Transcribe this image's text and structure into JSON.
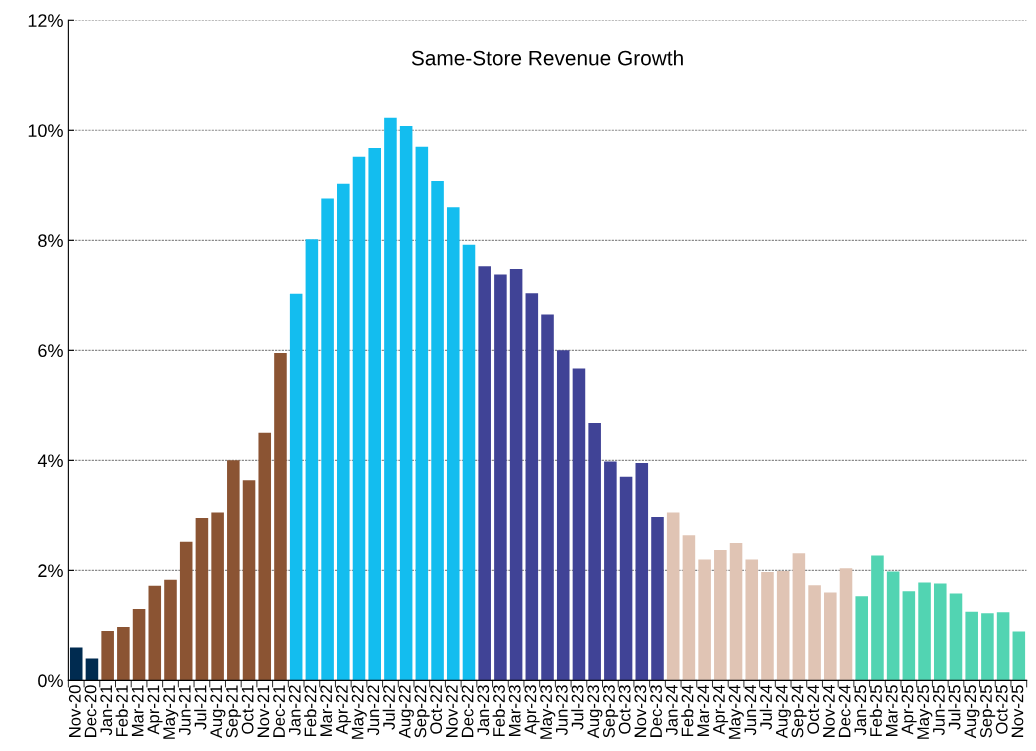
{
  "chart_data": {
    "type": "bar",
    "title": "Same-Store Revenue Growth",
    "categories": [
      "Nov-20",
      "Dec-20",
      "Jan-21",
      "Feb-21",
      "Mar-21",
      "Apr-21",
      "May-21",
      "Jun-21",
      "Jul-21",
      "Aug-21",
      "Sep-21",
      "Oct-21",
      "Nov-21",
      "Dec-21",
      "Jan-22",
      "Feb-22",
      "Mar-22",
      "Apr-22",
      "May-22",
      "Jun-22",
      "Jul-22",
      "Aug-22",
      "Sep-22",
      "Oct-22",
      "Nov-22",
      "Dec-22",
      "Jan-23",
      "Feb-23",
      "Mar-23",
      "Apr-23",
      "May-23",
      "Jun-23",
      "Jul-23",
      "Aug-23",
      "Sep-23",
      "Oct-23",
      "Nov-23",
      "Dec-23",
      "Jan-24",
      "Feb-24",
      "Mar-24",
      "Apr-24",
      "May-24",
      "Jun-24",
      "Jul-24",
      "Aug-24",
      "Sep-24",
      "Oct-24",
      "Nov-24",
      "Dec-24",
      "Jan-25",
      "Feb-25",
      "Mar-25",
      "Apr-25",
      "May-25",
      "Jun-25",
      "Jul-25",
      "Aug-25",
      "Sep-25",
      "Oct-25",
      "Nov-25"
    ],
    "values": [
      0.6,
      0.4,
      0.9,
      0.97,
      1.3,
      1.72,
      1.83,
      2.52,
      2.95,
      3.05,
      4.0,
      3.64,
      4.5,
      5.95,
      7.03,
      8.02,
      8.76,
      9.03,
      9.52,
      9.68,
      10.23,
      10.08,
      9.7,
      9.08,
      8.6,
      7.92,
      7.53,
      7.38,
      7.48,
      7.04,
      6.65,
      6.0,
      5.67,
      4.68,
      3.98,
      3.7,
      3.95,
      2.97,
      3.05,
      2.64,
      2.2,
      2.37,
      2.5,
      2.2,
      1.97,
      1.99,
      2.31,
      1.73,
      1.6,
      2.04,
      1.53,
      2.27,
      1.98,
      1.62,
      1.78,
      1.76,
      1.58,
      1.25,
      1.22,
      1.24,
      0.89
    ],
    "colors": [
      "#002b50",
      "#002b50",
      "#8b5433",
      "#8b5433",
      "#8b5433",
      "#8b5433",
      "#8b5433",
      "#8b5433",
      "#8b5433",
      "#8b5433",
      "#8b5433",
      "#8b5433",
      "#8b5433",
      "#8b5433",
      "#13bdef",
      "#13bdef",
      "#13bdef",
      "#13bdef",
      "#13bdef",
      "#13bdef",
      "#13bdef",
      "#13bdef",
      "#13bdef",
      "#13bdef",
      "#13bdef",
      "#13bdef",
      "#404396",
      "#404396",
      "#404396",
      "#404396",
      "#404396",
      "#404396",
      "#404396",
      "#404396",
      "#404396",
      "#404396",
      "#404396",
      "#404396",
      "#e0c4b4",
      "#e0c4b4",
      "#e0c4b4",
      "#e0c4b4",
      "#e0c4b4",
      "#e0c4b4",
      "#e0c4b4",
      "#e0c4b4",
      "#e0c4b4",
      "#e0c4b4",
      "#e0c4b4",
      "#e0c4b4",
      "#52d4b2",
      "#52d4b2",
      "#52d4b2",
      "#52d4b2",
      "#52d4b2",
      "#52d4b2",
      "#52d4b2",
      "#52d4b2",
      "#52d4b2",
      "#52d4b2",
      "#52d4b2"
    ],
    "ylim": [
      0,
      12
    ],
    "yticks": [
      {
        "value": 0,
        "label": "0%"
      },
      {
        "value": 2,
        "label": "2%"
      },
      {
        "value": 4,
        "label": "4%"
      },
      {
        "value": 6,
        "label": "6%"
      },
      {
        "value": 8,
        "label": "8%"
      },
      {
        "value": 10,
        "label": "10%"
      },
      {
        "value": 12,
        "label": "12%"
      }
    ],
    "grid": "y"
  }
}
